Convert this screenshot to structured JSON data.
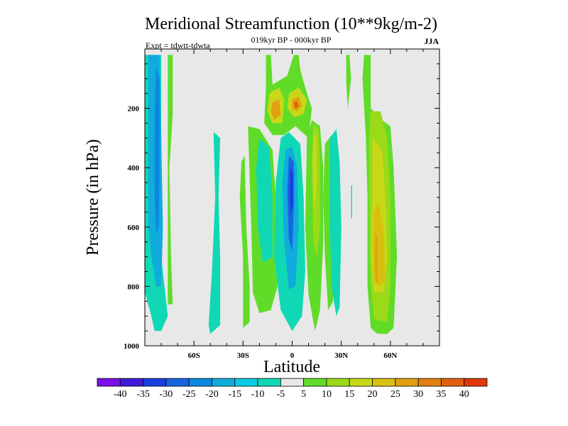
{
  "chart_data": {
    "type": "heatmap",
    "title": "Meridional Streamfunction (10**9kg/m-2)",
    "subtitle": "019kyr BP - 000kyr BP",
    "left_label": "Expt = tdwtt-tdwta",
    "season": "JJA",
    "xlabel": "Latitude",
    "ylabel": "Pressure (in hPa)",
    "xlim": [
      -90,
      90
    ],
    "ylim": [
      1000,
      0
    ],
    "x_ticks": [
      {
        "value": -60,
        "label": "60S"
      },
      {
        "value": -30,
        "label": "30S"
      },
      {
        "value": 0,
        "label": "0"
      },
      {
        "value": 30,
        "label": "30N"
      },
      {
        "value": 60,
        "label": "60N"
      }
    ],
    "y_ticks": [
      {
        "value": 200,
        "label": "200"
      },
      {
        "value": 400,
        "label": "400"
      },
      {
        "value": 600,
        "label": "600"
      },
      {
        "value": 800,
        "label": "800"
      },
      {
        "value": 1000,
        "label": "1000"
      }
    ],
    "colorbar": {
      "labels": [
        "-40",
        "-35",
        "-30",
        "-25",
        "-20",
        "-15",
        "-10",
        "-5",
        "5",
        "10",
        "15",
        "20",
        "25",
        "30",
        "35",
        "40"
      ],
      "colors": [
        "#7a10e8",
        "#4018d8",
        "#1a3ce0",
        "#1a64e0",
        "#0a88e0",
        "#10acdc",
        "#0ccce6",
        "#10d8b4",
        "#e8e8e8",
        "#60dc28",
        "#9ada18",
        "#c8d818",
        "#d8c010",
        "#e0a010",
        "#e08010",
        "#e06010",
        "#e03808"
      ]
    },
    "background_color": "#e8e8e8",
    "regions": [
      {
        "name": "sh-polar-cell-negative",
        "value": -10,
        "polygon": [
          [
            -90,
            20
          ],
          [
            -80,
            20
          ],
          [
            -80,
            700
          ],
          [
            -76,
            900
          ],
          [
            -80,
            950
          ],
          [
            -84,
            950
          ],
          [
            -86,
            900
          ],
          [
            -90,
            820
          ]
        ]
      },
      {
        "name": "sh-polar-cell-negative",
        "value": -20,
        "polygon": [
          [
            -88,
            20
          ],
          [
            -81,
            20
          ],
          [
            -80,
            300
          ],
          [
            -79,
            600
          ],
          [
            -80,
            800
          ],
          [
            -83,
            800
          ],
          [
            -86,
            700
          ],
          [
            -88,
            600
          ]
        ]
      },
      {
        "name": "sh-polar-cell-negative",
        "value": -25,
        "polygon": [
          [
            -83,
            60
          ],
          [
            -81,
            100
          ],
          [
            -81,
            400
          ],
          [
            -81.5,
            600
          ],
          [
            -83,
            620
          ],
          [
            -84,
            500
          ],
          [
            -84,
            200
          ]
        ]
      },
      {
        "name": "sh-polar-cell-positive",
        "value": 5,
        "polygon": [
          [
            -76,
            20
          ],
          [
            -73,
            20
          ],
          [
            -73,
            220
          ],
          [
            -75,
            400
          ],
          [
            -74,
            700
          ],
          [
            -73,
            860
          ],
          [
            -76,
            860
          ]
        ]
      },
      {
        "name": "sh-midlat-negative",
        "value": -10,
        "polygon": [
          [
            -48,
            280
          ],
          [
            -44,
            300
          ],
          [
            -45,
            500
          ],
          [
            -44,
            700
          ],
          [
            -44,
            930
          ],
          [
            -50,
            960
          ],
          [
            -51,
            930
          ],
          [
            -49,
            750
          ],
          [
            -47,
            500
          ]
        ]
      },
      {
        "name": "sh-subtropical-positive",
        "value": 5,
        "polygon": [
          [
            -31,
            380
          ],
          [
            -29,
            360
          ],
          [
            -28,
            600
          ],
          [
            -26,
            800
          ],
          [
            -26,
            920
          ],
          [
            -30,
            940
          ],
          [
            -30,
            700
          ],
          [
            -32,
            500
          ]
        ]
      },
      {
        "name": "sh-subtropical-positive",
        "value": 5,
        "polygon": [
          [
            -27,
            260
          ],
          [
            -20,
            270
          ],
          [
            -12,
            340
          ],
          [
            -10,
            500
          ],
          [
            -9,
            800
          ],
          [
            -13,
            880
          ],
          [
            -20,
            890
          ],
          [
            -24,
            820
          ],
          [
            -25,
            600
          ]
        ]
      },
      {
        "name": "sh-subtropical-negative",
        "value": -10,
        "polygon": [
          [
            -20,
            300
          ],
          [
            -14,
            330
          ],
          [
            -12,
            500
          ],
          [
            -12,
            700
          ],
          [
            -18,
            720
          ],
          [
            -21,
            600
          ],
          [
            -22,
            400
          ]
        ]
      },
      {
        "name": "upper-tropical-positive",
        "value": 5,
        "polygon": [
          [
            -16,
            20
          ],
          [
            -13,
            20
          ],
          [
            -12,
            120
          ],
          [
            -3,
            90
          ],
          [
            1,
            20
          ],
          [
            4,
            20
          ],
          [
            5,
            70
          ],
          [
            8,
            130
          ],
          [
            12,
            200
          ],
          [
            10,
            300
          ],
          [
            2,
            260
          ],
          [
            -5,
            290
          ],
          [
            -12,
            290
          ],
          [
            -17,
            250
          ],
          [
            -16,
            130
          ]
        ]
      },
      {
        "name": "upper-tropical-positive",
        "value": 15,
        "polygon": [
          [
            -14,
            150
          ],
          [
            -8,
            130
          ],
          [
            -5,
            170
          ],
          [
            -6,
            250
          ],
          [
            -12,
            250
          ],
          [
            -15,
            210
          ]
        ]
      },
      {
        "name": "upper-tropical-positive",
        "value": 15,
        "polygon": [
          [
            -2,
            150
          ],
          [
            4,
            130
          ],
          [
            9,
            170
          ],
          [
            7,
            220
          ],
          [
            1,
            230
          ],
          [
            -3,
            200
          ]
        ]
      },
      {
        "name": "upper-tropical-positive",
        "value": 25,
        "polygon": [
          [
            -12,
            180
          ],
          [
            -8,
            170
          ],
          [
            -7,
            220
          ],
          [
            -11,
            240
          ],
          [
            -13,
            210
          ]
        ]
      },
      {
        "name": "upper-tropical-positive",
        "value": 25,
        "polygon": [
          [
            0,
            170
          ],
          [
            4,
            160
          ],
          [
            6,
            190
          ],
          [
            3,
            210
          ],
          [
            0,
            200
          ]
        ]
      },
      {
        "name": "upper-tropical-positive",
        "value": 35,
        "polygon": [
          [
            1,
            180
          ],
          [
            3,
            175
          ],
          [
            4,
            195
          ],
          [
            2,
            200
          ]
        ]
      },
      {
        "name": "equatorial-negative",
        "value": -10,
        "polygon": [
          [
            -7,
            300
          ],
          [
            -2,
            280
          ],
          [
            5,
            320
          ],
          [
            7,
            500
          ],
          [
            8,
            750
          ],
          [
            6,
            900
          ],
          [
            0,
            950
          ],
          [
            -7,
            880
          ],
          [
            -11,
            700
          ],
          [
            -10,
            450
          ]
        ]
      },
      {
        "name": "equatorial-negative",
        "value": -20,
        "polygon": [
          [
            -4,
            340
          ],
          [
            0,
            330
          ],
          [
            3,
            400
          ],
          [
            4,
            600
          ],
          [
            2,
            800
          ],
          [
            -2,
            810
          ],
          [
            -5,
            650
          ],
          [
            -6,
            450
          ]
        ]
      },
      {
        "name": "equatorial-negative",
        "value": -30,
        "polygon": [
          [
            -2,
            360
          ],
          [
            1,
            380
          ],
          [
            1,
            540
          ],
          [
            0,
            680
          ],
          [
            -2,
            640
          ],
          [
            -3,
            480
          ]
        ]
      },
      {
        "name": "equatorial-negative",
        "value": -35,
        "polygon": [
          [
            -1,
            400
          ],
          [
            0.5,
            420
          ],
          [
            0.5,
            520
          ],
          [
            -1,
            560
          ],
          [
            -1.5,
            480
          ]
        ]
      },
      {
        "name": "nh-tropical-positive",
        "value": 5,
        "polygon": [
          [
            9,
            300
          ],
          [
            12,
            240
          ],
          [
            17,
            260
          ],
          [
            19,
            400
          ],
          [
            19,
            650
          ],
          [
            17,
            880
          ],
          [
            14,
            950
          ],
          [
            10,
            830
          ],
          [
            8,
            600
          ]
        ]
      },
      {
        "name": "nh-tropical-positive",
        "value": 10,
        "polygon": [
          [
            13,
            250
          ],
          [
            16,
            270
          ],
          [
            17,
            400
          ],
          [
            17,
            600
          ],
          [
            15,
            700
          ],
          [
            13,
            650
          ],
          [
            12,
            400
          ]
        ]
      },
      {
        "name": "nh-tropical-positive",
        "value": 15,
        "polygon": [
          [
            13,
            280
          ],
          [
            15,
            300
          ],
          [
            15,
            450
          ],
          [
            14,
            550
          ],
          [
            13,
            500
          ],
          [
            12.5,
            380
          ]
        ]
      },
      {
        "name": "nh-tropical-positive",
        "value": 5,
        "polygon": [
          [
            20,
            320
          ],
          [
            24,
            290
          ],
          [
            26,
            400
          ],
          [
            26,
            650
          ],
          [
            25,
            850
          ],
          [
            22,
            880
          ],
          [
            20,
            700
          ],
          [
            19,
            500
          ]
        ]
      },
      {
        "name": "nh-midlat-negative",
        "value": -10,
        "polygon": [
          [
            23,
            300
          ],
          [
            27,
            270
          ],
          [
            29,
            380
          ],
          [
            30,
            600
          ],
          [
            29,
            870
          ],
          [
            27,
            900
          ],
          [
            24,
            800
          ],
          [
            23,
            600
          ]
        ]
      },
      {
        "name": "nh-midlat-negative",
        "value": -10,
        "polygon": [
          [
            36,
            460
          ],
          [
            36.6,
            460
          ],
          [
            36.6,
            570
          ],
          [
            36,
            570
          ]
        ]
      },
      {
        "name": "nh-highlat-positive",
        "value": 5,
        "polygon": [
          [
            33,
            20
          ],
          [
            35,
            20
          ],
          [
            36,
            100
          ],
          [
            34,
            200
          ],
          [
            33,
            110
          ]
        ]
      },
      {
        "name": "nh-highlat-positive",
        "value": 5,
        "polygon": [
          [
            44,
            20
          ],
          [
            48,
            20
          ],
          [
            48,
            200
          ],
          [
            55,
            240
          ],
          [
            60,
            260
          ],
          [
            62,
            400
          ],
          [
            64,
            700
          ],
          [
            62,
            940
          ],
          [
            58,
            960
          ],
          [
            52,
            960
          ],
          [
            48,
            940
          ],
          [
            46,
            800
          ],
          [
            46,
            500
          ],
          [
            45,
            300
          ],
          [
            43,
            100
          ]
        ]
      },
      {
        "name": "nh-highlat-positive",
        "value": 10,
        "polygon": [
          [
            48,
            210
          ],
          [
            54,
            210
          ],
          [
            58,
            300
          ],
          [
            60,
            500
          ],
          [
            60,
            800
          ],
          [
            58,
            920
          ],
          [
            50,
            910
          ],
          [
            48,
            800
          ],
          [
            47,
            500
          ],
          [
            47,
            300
          ]
        ]
      },
      {
        "name": "nh-highlat-positive",
        "value": 15,
        "polygon": [
          [
            49,
            300
          ],
          [
            55,
            340
          ],
          [
            57,
            500
          ],
          [
            58,
            700
          ],
          [
            56,
            820
          ],
          [
            50,
            820
          ],
          [
            48,
            700
          ],
          [
            49,
            500
          ]
        ]
      },
      {
        "name": "nh-highlat-positive",
        "value": 20,
        "polygon": [
          [
            50,
            550
          ],
          [
            53,
            520
          ],
          [
            56,
            620
          ],
          [
            57,
            780
          ],
          [
            53,
            800
          ],
          [
            50,
            780
          ],
          [
            49,
            650
          ]
        ]
      },
      {
        "name": "nh-highlat-positive",
        "value": 25,
        "polygon": [
          [
            51,
            620
          ],
          [
            52,
            640
          ],
          [
            52,
            780
          ],
          [
            51,
            790
          ],
          [
            50.5,
            700
          ]
        ]
      }
    ]
  }
}
